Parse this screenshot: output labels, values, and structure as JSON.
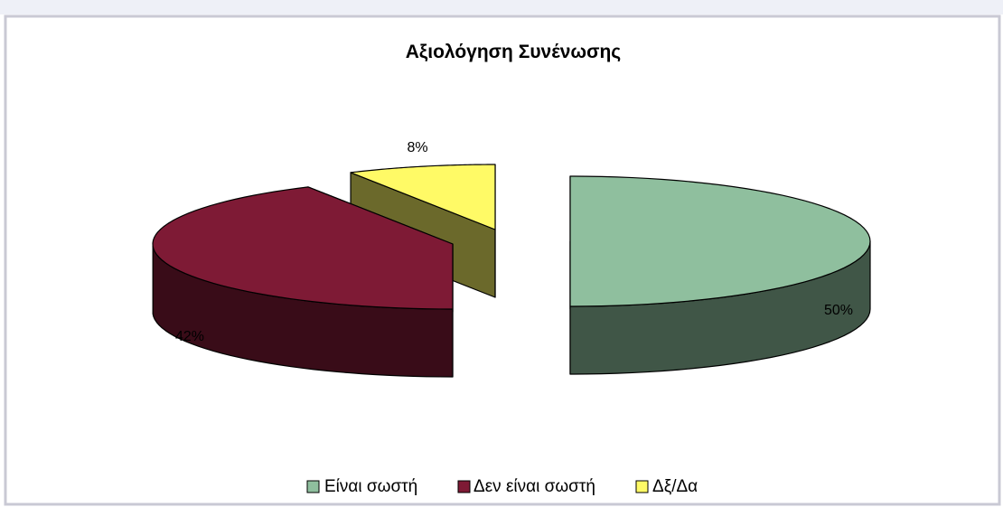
{
  "chart_data": {
    "type": "pie",
    "title": "Αξιολόγηση Συνένωσης",
    "labels": [
      "Είναι σωστή",
      "Δεν είναι σωστή",
      "Δξ/Δα"
    ],
    "values": [
      50,
      42,
      8
    ],
    "data_labels": [
      "50%",
      "42%",
      "8%"
    ],
    "colors": [
      "#8fbf9e",
      "#7e1a35",
      "#fffa66"
    ],
    "exploded": true,
    "three_d": true,
    "legend_position": "bottom"
  }
}
